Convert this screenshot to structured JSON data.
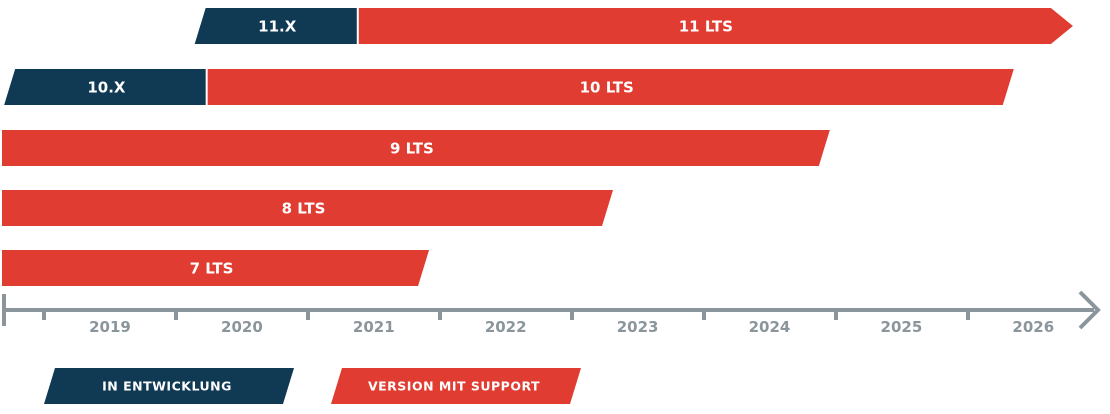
{
  "chart_data": {
    "type": "bar",
    "orientation": "horizontal",
    "subtype": "timeline",
    "x_axis": {
      "ticks": [
        "2019",
        "2020",
        "2021",
        "2022",
        "2023",
        "2024",
        "2025",
        "2026"
      ],
      "range": [
        2018.15,
        2026.3
      ]
    },
    "rows": [
      {
        "segments": [
          {
            "label": "11.X",
            "status": "in_development",
            "start": 2019.7,
            "end": 2020.85
          },
          {
            "label": "11 LTS",
            "status": "supported",
            "start": 2020.85,
            "end": 2026.3,
            "open_end": true
          }
        ]
      },
      {
        "segments": [
          {
            "label": "10.X",
            "status": "in_development",
            "start": 2018.25,
            "end": 2019.7
          },
          {
            "label": "10 LTS",
            "status": "supported",
            "start": 2019.7,
            "end": 2025.85
          }
        ]
      },
      {
        "segments": [
          {
            "label": "9 LTS",
            "status": "supported",
            "start": 2018.15,
            "end": 2024.45
          }
        ]
      },
      {
        "segments": [
          {
            "label": "8 LTS",
            "status": "supported",
            "start": 2018.15,
            "end": 2022.8
          }
        ]
      },
      {
        "segments": [
          {
            "label": "7 LTS",
            "status": "supported",
            "start": 2018.15,
            "end": 2021.4
          }
        ]
      }
    ],
    "legend": {
      "placement": "bottom-left",
      "items": [
        {
          "label": "IN ENTWICKLUNG",
          "status": "in_development"
        },
        {
          "label": "VERSION MIT SUPPORT",
          "status": "supported"
        }
      ]
    },
    "colors": {
      "in_development": "#103954",
      "supported": "#e03c31",
      "axis": "#8a969b"
    }
  }
}
